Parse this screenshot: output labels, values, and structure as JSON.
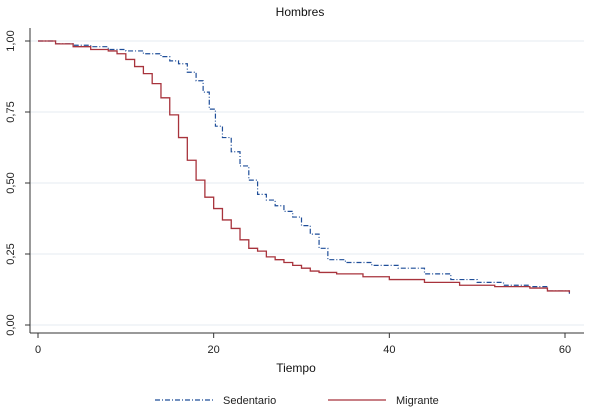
{
  "chart_data": {
    "type": "line",
    "title": "Hombres",
    "xlabel": "Tiempo",
    "ylabel": "",
    "xlim": [
      0,
      62
    ],
    "ylim": [
      0,
      1.05
    ],
    "x_ticks": [
      0,
      20,
      40,
      60
    ],
    "x_tick_labels": [
      "0",
      "20",
      "40",
      "60"
    ],
    "y_ticks": [
      0,
      0.25,
      0.5,
      0.75,
      1.0
    ],
    "y_tick_labels": [
      "0,00",
      "0,25",
      "0,50",
      "0,75",
      "1,00"
    ],
    "grid": "horizontal",
    "legend_position": "bottom",
    "series": [
      {
        "name": "Sedentario",
        "color": "#1f4e99",
        "style": "dash-dot",
        "x": [
          0,
          2,
          4,
          6,
          8,
          10,
          12,
          14,
          15,
          16,
          17,
          18,
          18.8,
          19.5,
          20.2,
          21,
          22,
          23,
          24,
          25,
          26,
          27,
          28,
          29,
          30,
          31,
          32,
          33,
          35,
          38,
          41,
          44,
          47,
          50,
          53,
          56,
          58,
          60.5
        ],
        "y": [
          1.0,
          0.99,
          0.985,
          0.98,
          0.97,
          0.965,
          0.955,
          0.945,
          0.93,
          0.92,
          0.89,
          0.86,
          0.82,
          0.76,
          0.7,
          0.66,
          0.61,
          0.56,
          0.51,
          0.46,
          0.44,
          0.42,
          0.4,
          0.38,
          0.35,
          0.32,
          0.27,
          0.23,
          0.22,
          0.21,
          0.2,
          0.18,
          0.16,
          0.15,
          0.14,
          0.135,
          0.12,
          0.11
        ]
      },
      {
        "name": "Migrante",
        "color": "#a8333c",
        "style": "solid",
        "x": [
          0,
          2,
          4,
          6,
          8,
          9,
          10,
          11,
          12,
          13,
          14,
          15,
          16,
          17,
          18,
          19,
          20,
          21,
          22,
          23,
          24,
          25,
          26,
          27,
          28,
          29,
          30,
          31,
          32,
          34,
          37,
          40,
          44,
          48,
          52,
          56,
          58,
          60.5
        ],
        "y": [
          1.0,
          0.99,
          0.98,
          0.97,
          0.965,
          0.955,
          0.935,
          0.91,
          0.885,
          0.85,
          0.8,
          0.74,
          0.66,
          0.58,
          0.51,
          0.45,
          0.41,
          0.37,
          0.34,
          0.3,
          0.27,
          0.26,
          0.24,
          0.23,
          0.22,
          0.21,
          0.2,
          0.19,
          0.185,
          0.18,
          0.17,
          0.16,
          0.15,
          0.14,
          0.135,
          0.13,
          0.12,
          0.115
        ]
      }
    ]
  }
}
